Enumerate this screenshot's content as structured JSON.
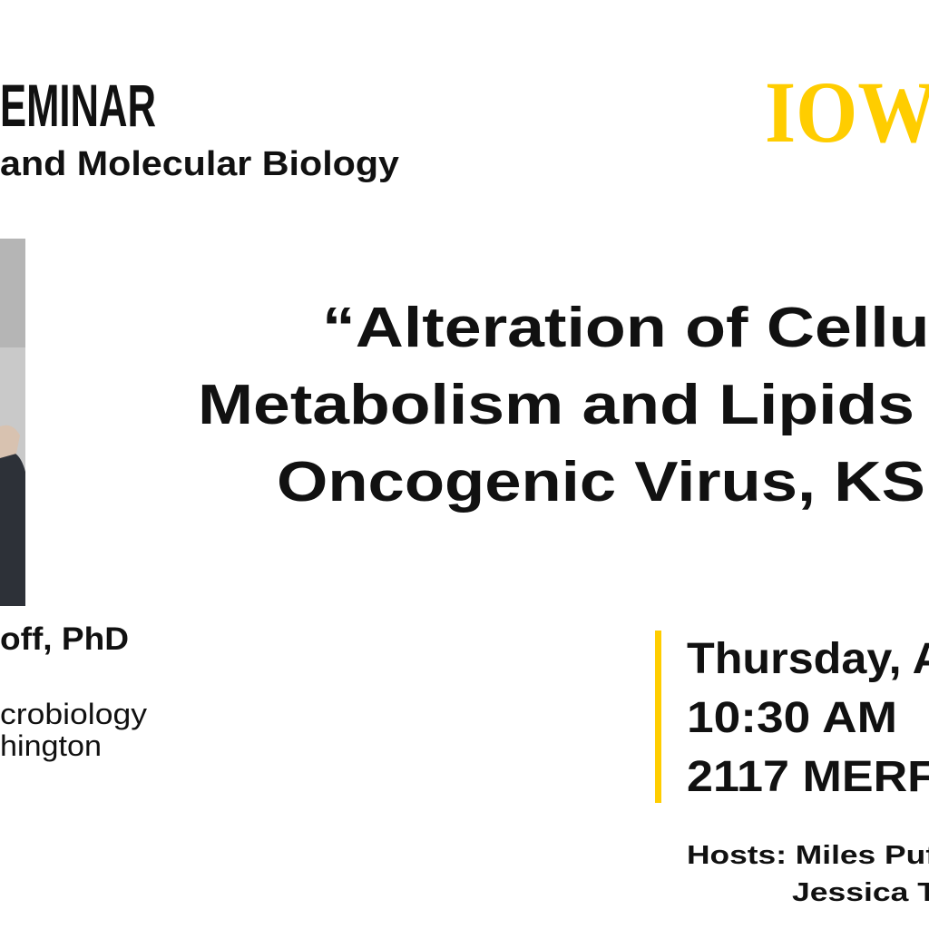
{
  "header": {
    "series": "EMINAR",
    "department": "and Molecular Biology",
    "logo": "IOW"
  },
  "title": {
    "lines": [
      "“Alteration of Cellul",
      "Metabolism and Lipids",
      "Oncogenic Virus, KSI"
    ]
  },
  "speaker": {
    "name": "off, PhD",
    "affiliation": [
      "crobiology",
      "hington"
    ]
  },
  "event": {
    "date": "Thursday, A",
    "time": "10:30 AM",
    "location": "2117 MERF"
  },
  "hosts": {
    "lines": [
      "Hosts: Miles Puf",
      "Jessica T"
    ]
  }
}
